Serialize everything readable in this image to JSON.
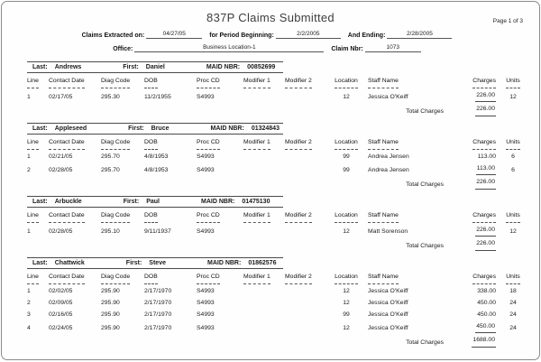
{
  "header": {
    "title": "837P Claims Submitted",
    "page_label": "Page 1 of 3",
    "fields": {
      "extracted_label": "Claims Extracted on:",
      "extracted_value": "04/27/05",
      "period_label": "for Period Beginning:",
      "period_value": "2/2/2005",
      "ending_label": "And Ending:",
      "ending_value": "2/28/2005",
      "office_label": "Office:",
      "office_value": "Business Location-1",
      "claim_label": "Claim Nbr:",
      "claim_value": "1073"
    }
  },
  "table": {
    "section_labels": {
      "last": "Last:",
      "first": "First:",
      "maid": "MAID NBR:"
    },
    "columns": [
      "Line",
      "Contact Date",
      "Diag Code",
      "DOB",
      "Proc CD",
      "Modifier 1",
      "Modifier 2",
      "Location",
      "Staff Name",
      "Charges",
      "Units"
    ],
    "total_label": "Total Charges",
    "sections": [
      {
        "last": "Andrews",
        "first": "Daniel",
        "maid": "00852699",
        "rows": [
          {
            "line": "1",
            "contact_date": "02/17/05",
            "diag_code": "295.30",
            "dob": "11/2/1955",
            "proc_cd": "S4993",
            "modifier1": "",
            "modifier2": "",
            "location": "12",
            "staff": "Jessica O'Keiff",
            "charges": "226.00",
            "units": "12"
          }
        ],
        "total": "226.00"
      },
      {
        "last": "Appleseed",
        "first": "Bruce",
        "maid": "01324843",
        "rows": [
          {
            "line": "1",
            "contact_date": "02/21/05",
            "diag_code": "295.70",
            "dob": "4/8/1953",
            "proc_cd": "S4993",
            "modifier1": "",
            "modifier2": "",
            "location": "99",
            "staff": "Andrea Jensen",
            "charges": "113.00",
            "units": "6"
          },
          {
            "line": "2",
            "contact_date": "02/28/05",
            "diag_code": "295.70",
            "dob": "4/8/1953",
            "proc_cd": "S4993",
            "modifier1": "",
            "modifier2": "",
            "location": "99",
            "staff": "Andrea Jensen",
            "charges": "113.00",
            "units": "6"
          }
        ],
        "total": "226.00"
      },
      {
        "last": "Arbuckle",
        "first": "Paul",
        "maid": "01475130",
        "rows": [
          {
            "line": "1",
            "contact_date": "02/28/05",
            "diag_code": "295.10",
            "dob": "9/11/1937",
            "proc_cd": "S4993",
            "modifier1": "",
            "modifier2": "",
            "location": "12",
            "staff": "Matt Sorenson",
            "charges": "226.00",
            "units": "12"
          }
        ],
        "total": "226.00"
      },
      {
        "last": "Chattwick",
        "first": "Steve",
        "maid": "01862576",
        "rows": [
          {
            "line": "1",
            "contact_date": "02/02/05",
            "diag_code": "295.90",
            "dob": "2/17/1970",
            "proc_cd": "S4993",
            "modifier1": "",
            "modifier2": "",
            "location": "12",
            "staff": "Jessica O'Keiff",
            "charges": "338.00",
            "units": "18"
          },
          {
            "line": "2",
            "contact_date": "02/09/05",
            "diag_code": "295.90",
            "dob": "2/17/1970",
            "proc_cd": "S4993",
            "modifier1": "",
            "modifier2": "",
            "location": "12",
            "staff": "Jessica O'Keiff",
            "charges": "450.00",
            "units": "24"
          },
          {
            "line": "3",
            "contact_date": "02/16/05",
            "diag_code": "295.90",
            "dob": "2/17/1970",
            "proc_cd": "S4993",
            "modifier1": "",
            "modifier2": "",
            "location": "99",
            "staff": "Jessica O'Keiff",
            "charges": "450.00",
            "units": "24"
          },
          {
            "line": "4",
            "contact_date": "02/24/05",
            "diag_code": "295.90",
            "dob": "2/17/1970",
            "proc_cd": "S4993",
            "modifier1": "",
            "modifier2": "",
            "location": "12",
            "staff": "Jessica O'Keiff",
            "charges": "450.00",
            "units": "24"
          }
        ],
        "total": "1688.00"
      }
    ]
  }
}
